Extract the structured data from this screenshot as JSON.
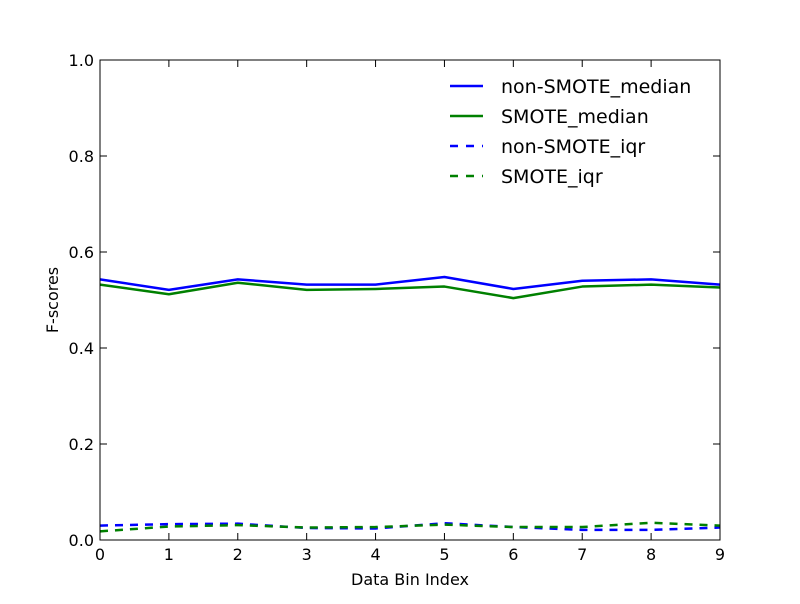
{
  "chart_data": {
    "type": "line",
    "title": "",
    "xlabel": "Data Bin Index",
    "ylabel": "F-scores",
    "x": [
      0,
      1,
      2,
      3,
      4,
      5,
      6,
      7,
      8,
      9
    ],
    "xlim": [
      0,
      9
    ],
    "ylim": [
      0.0,
      1.0
    ],
    "xticks": [
      "0",
      "1",
      "2",
      "3",
      "4",
      "5",
      "6",
      "7",
      "8",
      "9"
    ],
    "yticks": [
      "0.0",
      "0.2",
      "0.4",
      "0.6",
      "0.8",
      "1.0"
    ],
    "grid": false,
    "legend_position": "top-right",
    "series": [
      {
        "name": "non-SMOTE_median",
        "color": "#0000ff",
        "style": "solid",
        "values": [
          0.543,
          0.521,
          0.543,
          0.532,
          0.532,
          0.548,
          0.523,
          0.54,
          0.543,
          0.532
        ]
      },
      {
        "name": "SMOTE_median",
        "color": "#008000",
        "style": "solid",
        "values": [
          0.532,
          0.512,
          0.536,
          0.521,
          0.523,
          0.528,
          0.504,
          0.528,
          0.532,
          0.526
        ]
      },
      {
        "name": "non-SMOTE_iqr",
        "color": "#0000ff",
        "style": "dashed",
        "values": [
          0.03,
          0.033,
          0.034,
          0.025,
          0.024,
          0.035,
          0.027,
          0.021,
          0.021,
          0.026
        ]
      },
      {
        "name": "SMOTE_iqr",
        "color": "#008000",
        "style": "dashed",
        "values": [
          0.018,
          0.028,
          0.031,
          0.026,
          0.027,
          0.032,
          0.027,
          0.027,
          0.036,
          0.03
        ]
      }
    ]
  }
}
